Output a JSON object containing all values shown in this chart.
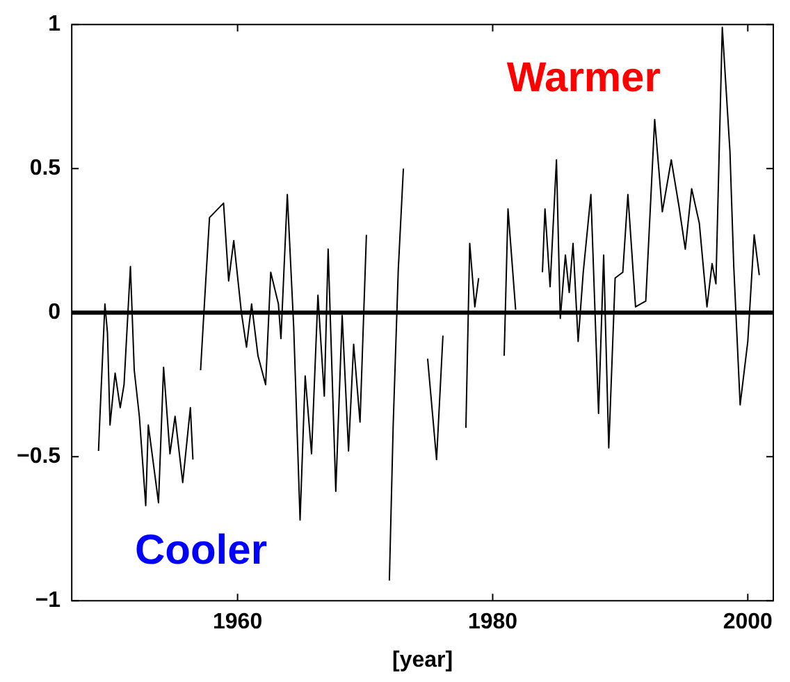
{
  "chart_data": {
    "type": "line",
    "xlabel": "[year]",
    "x": [
      1949.1,
      1949.2,
      1949.6,
      1949.8,
      1950.0,
      1950.4,
      1950.8,
      1951.1,
      1951.6,
      1951.9,
      1952.3,
      1952.8,
      1953.0,
      1953.3,
      1953.8,
      1954.2,
      1954.7,
      1955.1,
      1955.7,
      1956.3,
      1956.5,
      1956.8,
      1957.1,
      1957.4,
      1957.8,
      1958.9,
      1959.3,
      1959.7,
      1960.3,
      1960.7,
      1961.1,
      1961.6,
      1962.2,
      1962.6,
      1963.2,
      1963.4,
      1963.9,
      1964.4,
      1964.9,
      1965.3,
      1965.8,
      1966.3,
      1966.8,
      1967.1,
      1967.7,
      1968.2,
      1968.7,
      1969.1,
      1969.6,
      1970.1,
      1971.0,
      1971.9,
      1972.2,
      1972.6,
      1973.0,
      1974.0,
      1974.9,
      1975.6,
      1976.1,
      1977.0,
      1977.9,
      1978.2,
      1978.6,
      1978.9,
      1980.0,
      1980.9,
      1981.2,
      1981.8,
      1982.8,
      1983.9,
      1984.1,
      1984.5,
      1985.0,
      1985.3,
      1985.7,
      1986.0,
      1986.3,
      1986.7,
      1987.1,
      1987.7,
      1988.3,
      1988.7,
      1989.1,
      1989.6,
      1990.2,
      1990.6,
      1991.2,
      1992.0,
      1992.7,
      1993.3,
      1994.0,
      1994.6,
      1995.1,
      1995.6,
      1996.2,
      1996.8,
      1997.2,
      1997.5,
      1998.0,
      1998.6,
      1998.9,
      1999.4,
      2000.0,
      2000.5,
      2000.9
    ],
    "values": [
      -0.48,
      -0.37,
      0.03,
      -0.07,
      -0.39,
      -0.21,
      -0.33,
      -0.25,
      0.16,
      -0.2,
      -0.36,
      -0.67,
      -0.39,
      -0.49,
      -0.66,
      -0.19,
      -0.49,
      -0.36,
      -0.59,
      -0.33,
      -0.51,
      null,
      -0.2,
      0.03,
      0.33,
      0.38,
      0.11,
      0.25,
      0.0,
      -0.12,
      0.03,
      -0.15,
      -0.25,
      0.14,
      0.03,
      -0.09,
      0.41,
      -0.05,
      -0.72,
      -0.22,
      -0.49,
      0.06,
      -0.29,
      0.22,
      -0.62,
      -0.01,
      -0.48,
      -0.11,
      -0.38,
      0.27,
      null,
      -0.93,
      -0.39,
      0.15,
      0.5,
      null,
      -0.16,
      -0.51,
      -0.08,
      null,
      -0.4,
      0.24,
      0.02,
      0.12,
      null,
      -0.15,
      0.36,
      0.01,
      null,
      0.14,
      0.36,
      0.09,
      0.53,
      -0.02,
      0.2,
      0.07,
      0.24,
      -0.1,
      0.14,
      0.41,
      -0.35,
      0.2,
      -0.47,
      0.12,
      0.14,
      0.41,
      0.02,
      0.04,
      0.67,
      0.35,
      0.53,
      0.37,
      0.22,
      0.43,
      0.31,
      0.02,
      0.17,
      0.1,
      0.99,
      0.56,
      0.16,
      -0.32,
      -0.1,
      0.27,
      0.13
    ],
    "color": "#000000",
    "xlim": [
      1947,
      2002
    ],
    "xticks": [
      1960,
      1980,
      2000
    ],
    "ylim": [
      -1,
      1
    ],
    "yticks": [
      {
        "value": -1,
        "label": "−1"
      },
      {
        "value": -0.5,
        "label": "−0.5"
      },
      0,
      0.5,
      1
    ],
    "ref_lines": [
      {
        "axis": "y",
        "value": 0,
        "color": "#000000"
      }
    ],
    "annotations": [
      "Warmer",
      "Cooler"
    ],
    "grid": false,
    "legend": false,
    "marker": "none",
    "line_style": "solid"
  }
}
